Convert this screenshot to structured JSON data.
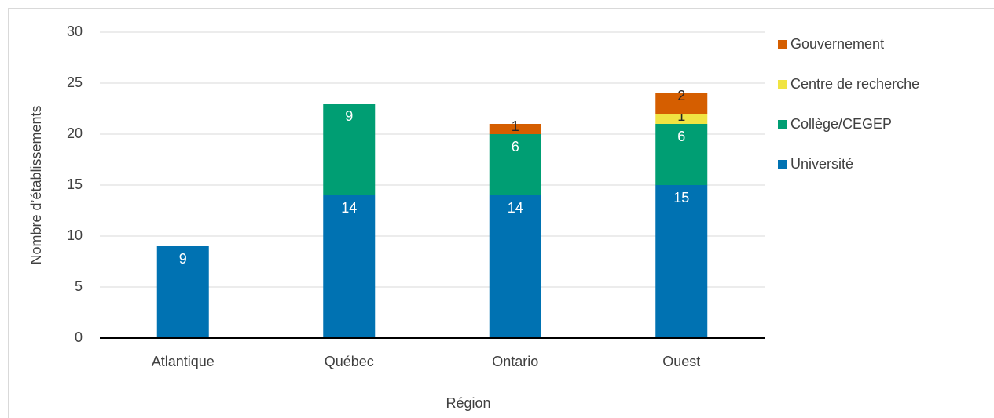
{
  "chart_data": {
    "type": "stacked_bar",
    "x_label": "Région",
    "y_label": "Nombre d’établissements",
    "categories": [
      "Atlantique",
      "Québec",
      "Ontario",
      "Ouest"
    ],
    "series": [
      {
        "name": "Université",
        "color": "#0072b2",
        "values": [
          9,
          14,
          14,
          15
        ]
      },
      {
        "name": "Collège/CEGEP",
        "color": "#009e73",
        "values": [
          null,
          9,
          6,
          6
        ]
      },
      {
        "name": "Centre de recherche",
        "color": "#f0e442",
        "values": [
          null,
          null,
          null,
          1
        ]
      },
      {
        "name": "Gouvernement",
        "color": "#d55e00",
        "values": [
          null,
          null,
          1,
          2
        ]
      }
    ],
    "ylim": [
      0,
      30
    ],
    "yticks": [
      0,
      5,
      10,
      15,
      20,
      25,
      30
    ],
    "grid": true,
    "legend": "right"
  }
}
